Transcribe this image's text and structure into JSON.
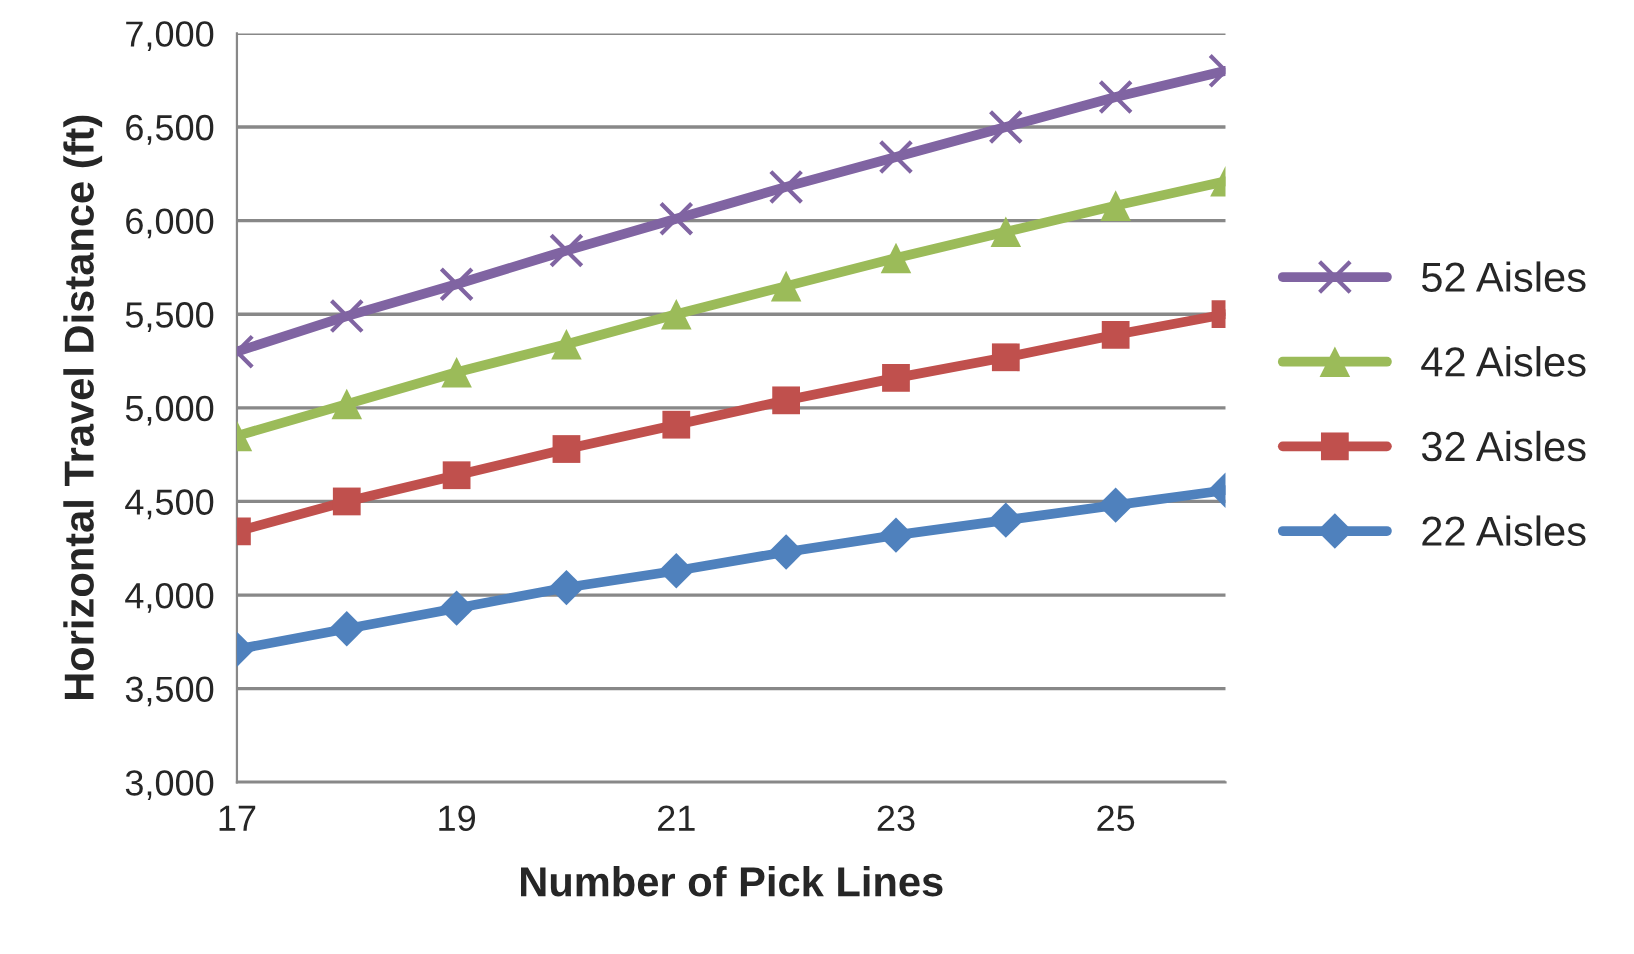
{
  "chart_data": {
    "type": "line",
    "xlabel": "Number of Pick Lines",
    "ylabel": "Horizontal Travel Distance (ft)",
    "x": [
      17,
      18,
      19,
      20,
      21,
      22,
      23,
      24,
      25,
      26
    ],
    "series": [
      {
        "name": "52 Aisles",
        "color": "#8064a2",
        "marker": "cross",
        "values": [
          5300,
          5490,
          5660,
          5840,
          6010,
          6180,
          6340,
          6500,
          6660,
          6800
        ]
      },
      {
        "name": "42 Aisles",
        "color": "#9bbb59",
        "marker": "triangle",
        "values": [
          4850,
          5020,
          5190,
          5340,
          5500,
          5650,
          5800,
          5940,
          6080,
          6210
        ]
      },
      {
        "name": "32 Aisles",
        "color": "#c0504d",
        "marker": "square",
        "values": [
          4340,
          4500,
          4640,
          4780,
          4910,
          5040,
          5160,
          5270,
          5390,
          5500
        ]
      },
      {
        "name": "22 Aisles",
        "color": "#4f81bd",
        "marker": "diamond",
        "values": [
          3710,
          3820,
          3930,
          4040,
          4130,
          4230,
          4320,
          4400,
          4480,
          4560
        ]
      }
    ],
    "xlim": [
      17,
      26
    ],
    "xticks": [
      17,
      19,
      21,
      23,
      25
    ],
    "ylim": [
      3000,
      7000
    ],
    "yticks": [
      {
        "value": 3000,
        "label": "3,000"
      },
      {
        "value": 3500,
        "label": "3,500"
      },
      {
        "value": 4000,
        "label": "4,000"
      },
      {
        "value": 4500,
        "label": "4,500"
      },
      {
        "value": 5000,
        "label": "5,000"
      },
      {
        "value": 5500,
        "label": "5,500"
      },
      {
        "value": 6000,
        "label": "6,000"
      },
      {
        "value": 6500,
        "label": "6,500"
      },
      {
        "value": 7000,
        "label": "7,000"
      }
    ],
    "grid": "y",
    "legend": "right",
    "line_style": "solid"
  }
}
